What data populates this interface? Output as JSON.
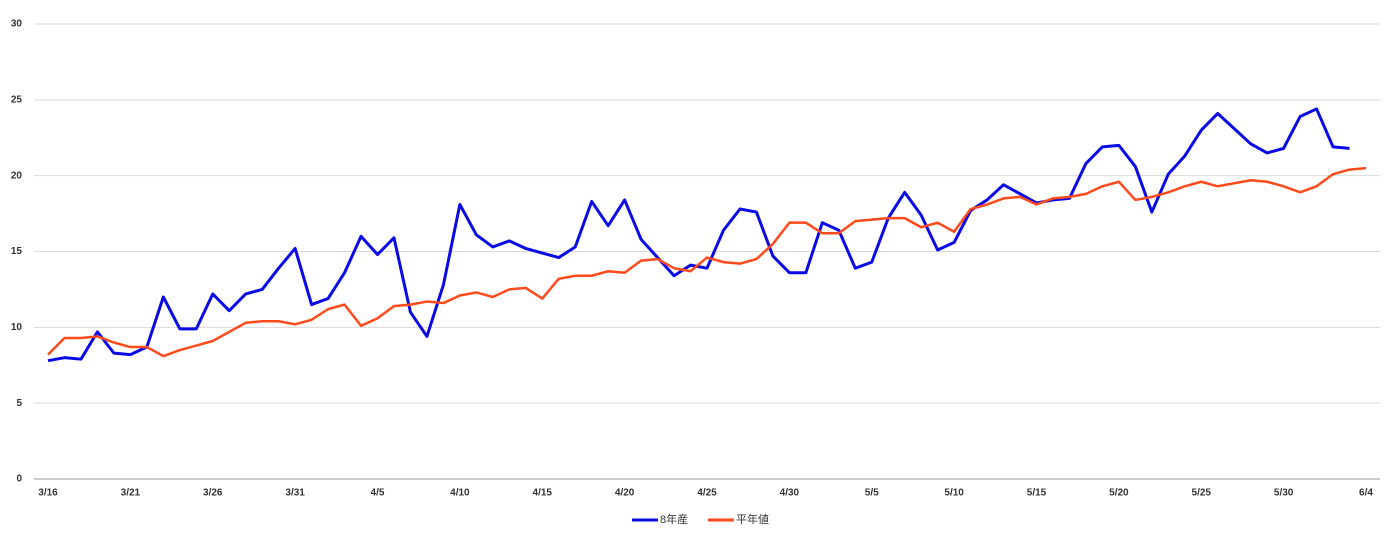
{
  "chart_data": {
    "type": "line",
    "categories": [
      "3/16",
      null,
      null,
      null,
      null,
      "3/21",
      null,
      null,
      null,
      null,
      "3/26",
      null,
      null,
      null,
      null,
      "3/31",
      null,
      null,
      null,
      null,
      "4/5",
      null,
      null,
      null,
      null,
      "4/10",
      null,
      null,
      null,
      null,
      "4/15",
      null,
      null,
      null,
      null,
      "4/20",
      null,
      null,
      null,
      null,
      "4/25",
      null,
      null,
      null,
      null,
      "4/30",
      null,
      null,
      null,
      null,
      "5/5",
      null,
      null,
      null,
      null,
      "5/10",
      null,
      null,
      null,
      null,
      "5/15",
      null,
      null,
      null,
      null,
      "5/20",
      null,
      null,
      null,
      null,
      "5/25",
      null,
      null,
      null,
      null,
      "5/30",
      null,
      null,
      null,
      null,
      "6/4"
    ],
    "series": [
      {
        "name": "8年産",
        "color": "#0a0ae6",
        "values": [
          7.8,
          8.0,
          7.9,
          9.7,
          8.3,
          8.2,
          8.7,
          12.0,
          9.9,
          9.9,
          12.2,
          11.1,
          12.2,
          12.5,
          13.9,
          15.2,
          11.5,
          11.9,
          13.6,
          16.0,
          14.8,
          15.9,
          11.0,
          9.4,
          12.8,
          18.1,
          16.1,
          15.3,
          15.7,
          15.2,
          14.9,
          14.6,
          15.3,
          18.3,
          16.7,
          18.4,
          15.8,
          14.6,
          13.4,
          14.1,
          13.9,
          16.4,
          17.8,
          17.6,
          14.7,
          13.6,
          13.6,
          16.9,
          16.4,
          13.9,
          14.3,
          17.2,
          18.9,
          17.4,
          15.1,
          15.6,
          17.7,
          18.4,
          19.4,
          18.8,
          18.2,
          18.4,
          18.5,
          20.8,
          21.9,
          22.0,
          20.6,
          17.6,
          20.1,
          21.3,
          23.0,
          24.1,
          23.1,
          22.1,
          21.5,
          21.8,
          23.9,
          24.4,
          21.9,
          21.8,
          null
        ]
      },
      {
        "name": "平年値",
        "color": "#ff4a1c",
        "values": [
          8.2,
          9.3,
          9.3,
          9.4,
          9.0,
          8.7,
          8.7,
          8.1,
          8.5,
          8.8,
          9.1,
          9.7,
          10.3,
          10.4,
          10.4,
          10.2,
          10.5,
          11.2,
          11.5,
          10.1,
          10.6,
          11.4,
          11.5,
          11.7,
          11.6,
          12.1,
          12.3,
          12.0,
          12.5,
          12.6,
          11.9,
          13.2,
          13.4,
          13.4,
          13.7,
          13.6,
          14.4,
          14.5,
          13.9,
          13.7,
          14.6,
          14.3,
          14.2,
          14.5,
          15.5,
          16.9,
          16.9,
          16.2,
          16.2,
          17.0,
          17.1,
          17.2,
          17.2,
          16.6,
          16.9,
          16.3,
          17.8,
          18.1,
          18.5,
          18.6,
          18.1,
          18.5,
          18.6,
          18.8,
          19.3,
          19.6,
          18.4,
          18.6,
          18.9,
          19.3,
          19.6,
          19.3,
          19.5,
          19.7,
          19.6,
          19.3,
          18.9,
          19.3,
          20.1,
          20.4,
          20.5
        ]
      }
    ],
    "ylim": [
      0,
      30
    ],
    "yticks": [
      0,
      5,
      10,
      15,
      20,
      25,
      30
    ],
    "grid": true,
    "legend": "bottom"
  }
}
